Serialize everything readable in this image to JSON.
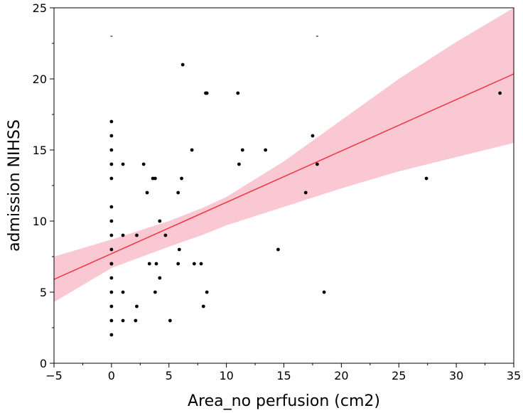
{
  "chart_data": {
    "type": "scatter",
    "xlabel": "Area_no perfusion (cm2)",
    "ylabel": "admission NIHSS",
    "xlim": [
      -5,
      35
    ],
    "ylim": [
      0,
      25
    ],
    "xticks": [
      -5,
      0,
      5,
      10,
      15,
      20,
      25,
      30,
      35
    ],
    "yticks": [
      0,
      5,
      10,
      15,
      20,
      25
    ],
    "x_tick_labels": [
      "−5",
      "0",
      "5",
      "10",
      "15",
      "20",
      "25",
      "30",
      "35"
    ],
    "y_tick_labels": [
      "0",
      "5",
      "10",
      "15",
      "20",
      "25"
    ],
    "grid": false,
    "points": [
      [
        0,
        2
      ],
      [
        0,
        3
      ],
      [
        0,
        4
      ],
      [
        0,
        5
      ],
      [
        0,
        6
      ],
      [
        0,
        7
      ],
      [
        0,
        7
      ],
      [
        0,
        8
      ],
      [
        0,
        9
      ],
      [
        0,
        10
      ],
      [
        0,
        11
      ],
      [
        0,
        13
      ],
      [
        0,
        14
      ],
      [
        0,
        15
      ],
      [
        0,
        16
      ],
      [
        0,
        17
      ],
      [
        1,
        3
      ],
      [
        1,
        5
      ],
      [
        1,
        9
      ],
      [
        1,
        14
      ],
      [
        2.1,
        3
      ],
      [
        2.2,
        4
      ],
      [
        2.2,
        9
      ],
      [
        2.8,
        14
      ],
      [
        3.1,
        12
      ],
      [
        3.3,
        7
      ],
      [
        3.6,
        13
      ],
      [
        3.8,
        13
      ],
      [
        3.8,
        5
      ],
      [
        3.9,
        7
      ],
      [
        4.2,
        6
      ],
      [
        4.2,
        10
      ],
      [
        4.7,
        9
      ],
      [
        5.1,
        3
      ],
      [
        5.8,
        12
      ],
      [
        5.9,
        8
      ],
      [
        5.8,
        7
      ],
      [
        6.1,
        13
      ],
      [
        6.2,
        21
      ],
      [
        7.0,
        15
      ],
      [
        7.2,
        7
      ],
      [
        7.8,
        7
      ],
      [
        8.0,
        4
      ],
      [
        8.2,
        19
      ],
      [
        8.3,
        19
      ],
      [
        8.3,
        5
      ],
      [
        11.0,
        19
      ],
      [
        11.1,
        14
      ],
      [
        11.4,
        15
      ],
      [
        13.4,
        15
      ],
      [
        14.5,
        8
      ],
      [
        16.9,
        12
      ],
      [
        17.5,
        16
      ],
      [
        17.9,
        14
      ],
      [
        18.5,
        5
      ],
      [
        27.4,
        13
      ],
      [
        33.8,
        19
      ]
    ],
    "fit_line": {
      "x": [
        -5,
        35
      ],
      "y": [
        5.9,
        20.35
      ],
      "color": "#ee3344"
    },
    "confidence_band": {
      "x": [
        -5,
        0,
        5,
        8,
        10,
        15,
        20,
        25,
        30,
        35
      ],
      "upper": [
        7.5,
        8.7,
        10.0,
        10.95,
        11.7,
        14.2,
        17.1,
        20.0,
        22.6,
        25.0
      ],
      "lower": [
        4.3,
        6.7,
        8.2,
        9.05,
        9.7,
        11.0,
        12.3,
        13.5,
        14.5,
        15.5
      ],
      "color": "#f9c8d2"
    },
    "point_color": "#000000",
    "outlier_marks": [
      [
        0,
        23
      ],
      [
        17.9,
        23
      ]
    ]
  }
}
